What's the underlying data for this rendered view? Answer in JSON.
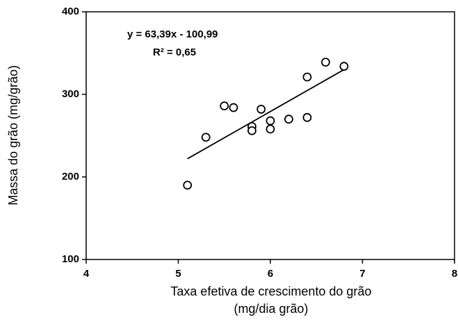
{
  "chart_data": {
    "type": "scatter",
    "x_label": "Taxa efetiva de crescimento do grão",
    "x_label_2": "(mg/dia grão)",
    "y_label": "Massa do grão (mg/grão)",
    "annotations": [
      "y = 63,39x - 100,99",
      "R² = 0,65"
    ],
    "x": [
      5.1,
      5.3,
      5.5,
      5.6,
      5.8,
      5.8,
      5.9,
      6.0,
      6.0,
      6.2,
      6.4,
      6.4,
      6.6,
      6.8
    ],
    "values": [
      190,
      248,
      286,
      284,
      261,
      256,
      282,
      268,
      258,
      270,
      321,
      272,
      339,
      334
    ],
    "trendline": {
      "x": [
        5.1,
        6.8
      ],
      "y": [
        222,
        330
      ]
    },
    "color": "#000000",
    "xlim": [
      4,
      8
    ],
    "xticks": [
      4,
      5,
      6,
      7,
      8
    ],
    "ylim": [
      100,
      400
    ],
    "yticks": [
      100,
      200,
      300,
      400
    ],
    "grid": false
  }
}
